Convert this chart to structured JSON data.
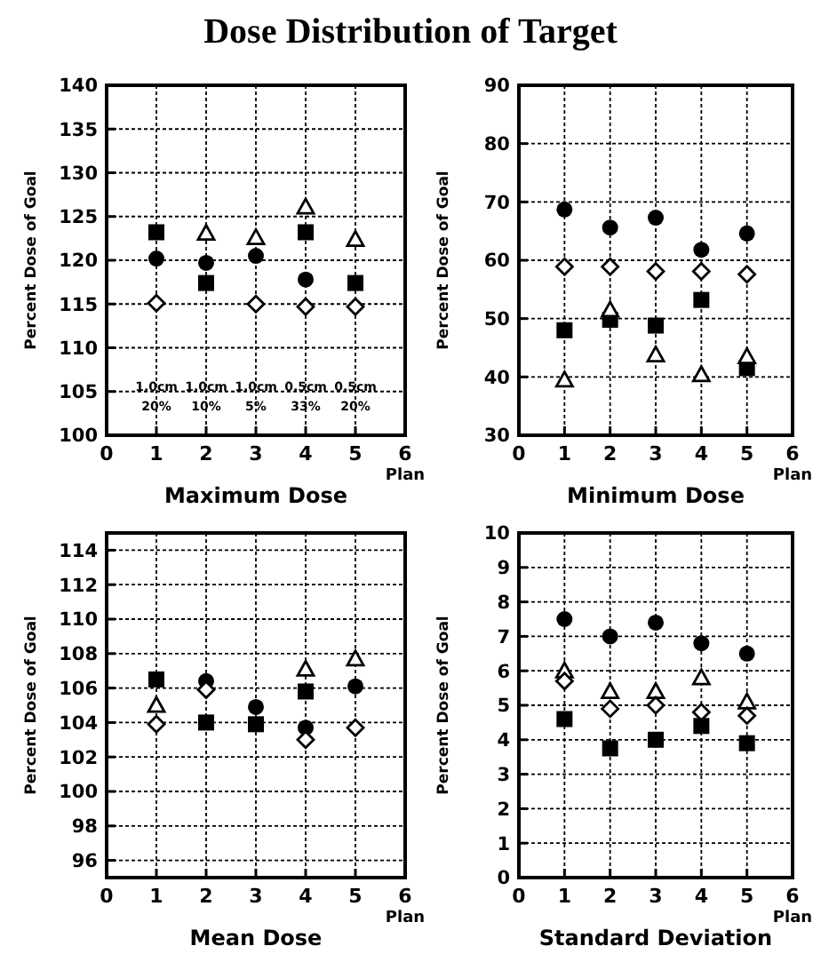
{
  "chart_data": [
    {
      "type": "scatter",
      "title": "Dose Distribution of Target",
      "subtitle": "Maximum Dose",
      "xlabel": "Plan",
      "ylabel": "Percent Dose of Goal",
      "x": [
        1,
        2,
        3,
        4,
        5
      ],
      "xlim": [
        0,
        6
      ],
      "xticks": [
        0,
        1,
        2,
        3,
        4,
        5,
        6
      ],
      "ylim": [
        100,
        140
      ],
      "yticks": [
        100,
        105,
        110,
        115,
        120,
        125,
        130,
        135,
        140
      ],
      "grid": true,
      "series": [
        {
          "color": "#000000",
          "marker": "square",
          "values": [
            123.2,
            117.4,
            null,
            123.2,
            117.4
          ]
        },
        {
          "color": "#000000",
          "marker": "circle",
          "values": [
            120.2,
            119.7,
            120.5,
            117.8,
            null
          ]
        },
        {
          "color": "#000000",
          "marker": "triangle",
          "values": [
            null,
            123.1,
            122.6,
            126.1,
            122.4
          ]
        },
        {
          "color": "#000000",
          "marker": "diamond",
          "values": [
            115.1,
            null,
            115,
            114.7,
            114.7
          ]
        }
      ],
      "annotations": [
        "1.0cm 20%",
        "1.0cm 10%",
        "1.0cm 5%",
        "0.5cm 33%",
        "0.5cm 20%"
      ]
    },
    {
      "type": "scatter",
      "subtitle": "Minimum Dose",
      "xlabel": "Plan",
      "ylabel": "Percent Dose of Goal",
      "x": [
        1,
        2,
        3,
        4,
        5
      ],
      "xlim": [
        0,
        6
      ],
      "xticks": [
        0,
        1,
        2,
        3,
        4,
        5,
        6
      ],
      "ylim": [
        30,
        90
      ],
      "yticks": [
        30,
        40,
        50,
        60,
        70,
        80,
        90
      ],
      "grid": true,
      "series": [
        {
          "color": "#000000",
          "marker": "circle",
          "values": [
            68.7,
            65.6,
            67.3,
            61.8,
            64.6
          ]
        },
        {
          "color": "#000000",
          "marker": "diamond",
          "values": [
            58.9,
            58.9,
            58.1,
            58.1,
            57.6
          ]
        },
        {
          "color": "#000000",
          "marker": "square",
          "values": [
            48,
            49.8,
            48.8,
            53.2,
            41.5
          ]
        },
        {
          "color": "#000000",
          "marker": "triangle",
          "values": [
            39.5,
            51.5,
            43.8,
            40.4,
            43.5
          ]
        }
      ]
    },
    {
      "type": "scatter",
      "subtitle": "Mean Dose",
      "xlabel": "Plan",
      "ylabel": "Percent Dose of Goal",
      "x": [
        1,
        2,
        3,
        4,
        5
      ],
      "xlim": [
        0,
        6
      ],
      "xticks": [
        0,
        1,
        2,
        3,
        4,
        5,
        6
      ],
      "ylim": [
        95,
        115
      ],
      "yticks": [
        96,
        98,
        100,
        102,
        104,
        106,
        108,
        110,
        112,
        114
      ],
      "grid": true,
      "series": [
        {
          "color": "#000000",
          "marker": "circle",
          "values": [
            null,
            106.4,
            104.9,
            103.7,
            106.1
          ]
        },
        {
          "color": "#000000",
          "marker": "square",
          "values": [
            106.5,
            104,
            103.9,
            105.8,
            null
          ]
        },
        {
          "color": "#000000",
          "marker": "triangle",
          "values": [
            105,
            null,
            null,
            107.1,
            107.7
          ]
        },
        {
          "color": "#000000",
          "marker": "diamond",
          "values": [
            103.9,
            105.9,
            null,
            103,
            103.7
          ]
        }
      ]
    },
    {
      "type": "scatter",
      "subtitle": "Standard Deviation",
      "xlabel": "Plan",
      "ylabel": "Percent Dose of Goal",
      "x": [
        1,
        2,
        3,
        4,
        5
      ],
      "xlim": [
        0,
        6
      ],
      "xticks": [
        0,
        1,
        2,
        3,
        4,
        5,
        6
      ],
      "ylim": [
        0,
        10
      ],
      "yticks": [
        0,
        1,
        2,
        3,
        4,
        5,
        6,
        7,
        8,
        9,
        10
      ],
      "grid": true,
      "series": [
        {
          "color": "#000000",
          "marker": "circle",
          "values": [
            7.5,
            7,
            7.4,
            6.8,
            6.5
          ]
        },
        {
          "color": "#000000",
          "marker": "triangle",
          "values": [
            6,
            5.4,
            5.4,
            5.8,
            5.1
          ]
        },
        {
          "color": "#000000",
          "marker": "diamond",
          "values": [
            5.7,
            4.9,
            5,
            4.8,
            4.7
          ]
        },
        {
          "color": "#000000",
          "marker": "square",
          "values": [
            4.6,
            3.75,
            4,
            4.4,
            3.9
          ]
        }
      ]
    }
  ]
}
